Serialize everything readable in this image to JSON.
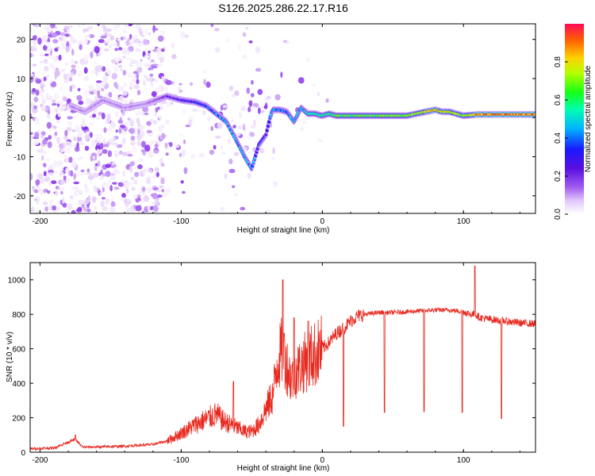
{
  "title": "S126.2025.286.22.17.R16",
  "colors": {
    "snr_line": "#e8281e",
    "colorscale": [
      "#ffffff",
      "#e9d6fa",
      "#b37cf2",
      "#7a1de6",
      "#1a1aff",
      "#00d7ff",
      "#00ff90",
      "#7dff00",
      "#ffe600",
      "#ff7a00",
      "#ff0a50"
    ]
  },
  "chart_data": [
    {
      "type": "heatmap",
      "xlabel": "Height of straight line (km)",
      "ylabel": "Frequency (Hz)",
      "xlim": [
        -207,
        151
      ],
      "ylim": [
        -24.5,
        24
      ],
      "x_ticks": [
        "-200",
        "-100",
        "0",
        "100"
      ],
      "y_ticks": [
        "-20",
        "-10",
        "0",
        "10",
        "20"
      ],
      "colorbar": {
        "label": "Normalized spectral amplitude",
        "range": [
          0,
          1
        ],
        "ticks": [
          "0.0",
          "0.2",
          "0.4",
          "0.6",
          "0.8"
        ]
      },
      "ridge": {
        "x": [
          -178,
          -168,
          -155,
          -140,
          -125,
          -110,
          -100,
          -90,
          -82,
          -75,
          -68,
          -62,
          -55,
          -50,
          -45,
          -40,
          -37,
          -35,
          -30,
          -25,
          -20,
          -15,
          -10,
          -5,
          0,
          5,
          10,
          20,
          40,
          60,
          80,
          85,
          90,
          100,
          110,
          130,
          151
        ],
        "y": [
          3,
          1.5,
          4.5,
          2.5,
          3.5,
          5.5,
          4.5,
          4,
          3,
          1,
          -1,
          -5,
          -10,
          -13,
          -7,
          -4.5,
          0,
          2,
          2,
          1.5,
          -1,
          2.5,
          1,
          1,
          0.5,
          1,
          0.5,
          0.5,
          0.5,
          0.5,
          2,
          1.5,
          1.5,
          0.5,
          0.8,
          0.8,
          0.8
        ],
        "amplitude": [
          0.2,
          0.2,
          0.2,
          0.2,
          0.2,
          0.3,
          0.35,
          0.4,
          0.4,
          0.45,
          0.5,
          0.5,
          0.5,
          0.5,
          0.4,
          0.35,
          0.45,
          0.5,
          0.45,
          0.45,
          0.5,
          0.5,
          0.55,
          0.6,
          0.6,
          0.62,
          0.65,
          0.65,
          0.68,
          0.7,
          0.85,
          0.8,
          0.8,
          0.7,
          0.9,
          0.92,
          0.92
        ]
      }
    },
    {
      "type": "line",
      "xlabel": "Height of straight line (km)",
      "ylabel": "SNR (10 * v/v)",
      "xlim": [
        -207,
        151
      ],
      "ylim": [
        0,
        1100
      ],
      "x_ticks": [
        "-200",
        "-100",
        "0",
        "100"
      ],
      "y_ticks": [
        "0",
        "200",
        "400",
        "600",
        "800",
        "1000"
      ],
      "series": [
        {
          "x": [
            -207,
            -190,
            -175,
            -170,
            -160,
            -140,
            -120,
            -110,
            -100,
            -90,
            -80,
            -75,
            -70,
            -65,
            -60,
            -55,
            -50,
            -45,
            -40,
            -35,
            -32,
            -30,
            -28,
            -25,
            -22,
            -20,
            -15,
            -10,
            -5,
            0,
            5,
            10,
            15,
            20,
            25,
            30,
            40,
            50,
            60,
            70,
            80,
            90,
            100,
            105,
            108,
            112,
            120,
            130,
            140,
            151
          ],
          "y": [
            20,
            25,
            75,
            30,
            30,
            35,
            45,
            65,
            110,
            160,
            200,
            220,
            180,
            160,
            140,
            120,
            120,
            160,
            250,
            330,
            520,
            560,
            600,
            500,
            420,
            460,
            500,
            540,
            570,
            600,
            640,
            690,
            720,
            760,
            790,
            800,
            810,
            810,
            815,
            820,
            825,
            825,
            815,
            800,
            800,
            780,
            770,
            760,
            750,
            745
          ]
        }
      ],
      "spikes": [
        {
          "x": -175,
          "y": 100
        },
        {
          "x": -63,
          "y": 410
        },
        {
          "x": -28,
          "y": 1000
        },
        {
          "x": -27,
          "y": 690
        },
        {
          "x": -20,
          "y": 780
        },
        {
          "x": -10,
          "y": 760
        },
        {
          "x": 108,
          "y": 1080
        }
      ],
      "dips": [
        {
          "x": 15,
          "y": 150
        },
        {
          "x": 44,
          "y": 230
        },
        {
          "x": 72,
          "y": 235
        },
        {
          "x": 99,
          "y": 230
        },
        {
          "x": 127,
          "y": 195
        }
      ]
    }
  ]
}
